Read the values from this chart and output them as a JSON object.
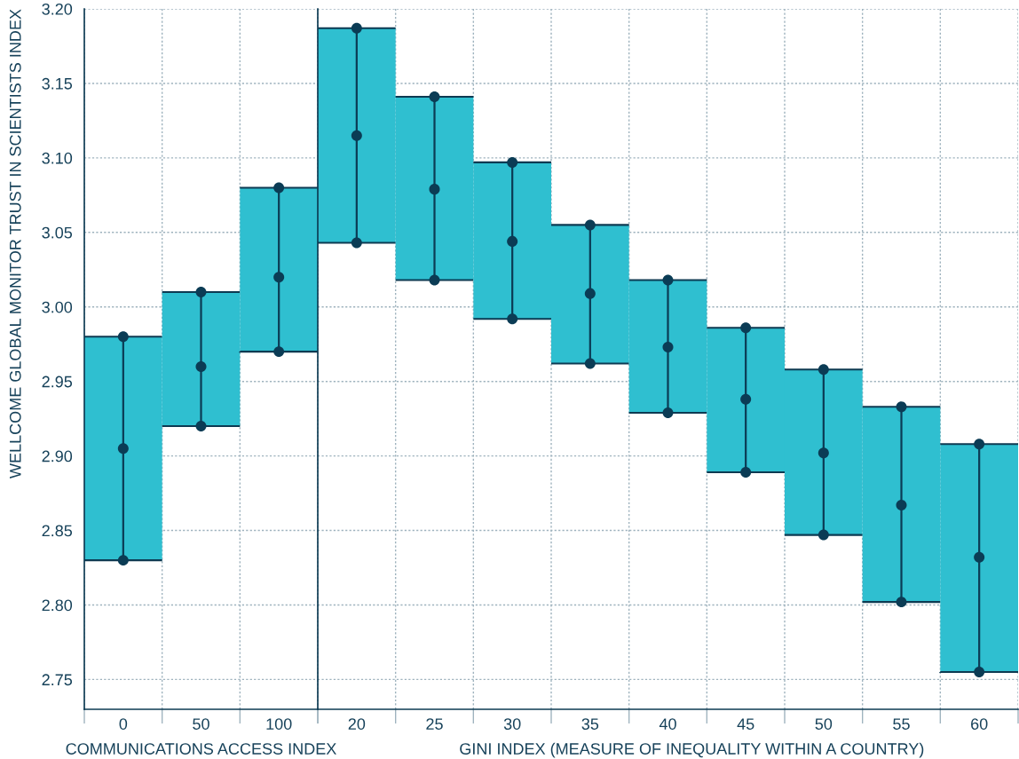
{
  "chart_data": [
    {
      "type": "bar",
      "categories": [
        "0",
        "50",
        "100"
      ],
      "xlabel": "COMMUNICATIONS ACCESS INDEX",
      "ylabel": "WELLCOME GLOBAL MONITOR TRUST IN SCIENTISTS INDEX",
      "ylim": [
        2.73,
        3.2
      ],
      "yticks": [
        2.75,
        {
          "value": 2.8,
          "label": "2.80"
        },
        2.85,
        {
          "value": 2.9,
          "label": "2.90"
        },
        2.95,
        {
          "value": 3.0,
          "label": "3.00"
        },
        3.05,
        {
          "value": 3.1,
          "label": "3.10"
        },
        3.15,
        {
          "value": 3.2,
          "label": "3.20"
        }
      ],
      "grid": true,
      "marker": "circle",
      "series": [
        {
          "color": "#2fbfd0",
          "base": [
            2.83,
            2.92,
            2.97
          ],
          "values": [
            0.15,
            0.09,
            0.11
          ]
        },
        {
          "type": "line",
          "color": "#0b3c55",
          "x": [
            "0",
            "0",
            "0",
            "50",
            "50",
            "50",
            "100",
            "100"
          ],
          "values": [
            2.83,
            2.98,
            null,
            2.92,
            3.01,
            null,
            2.97,
            3.08
          ]
        },
        {
          "type": "scatter",
          "color": "#0b3c55",
          "values": [
            2.905,
            2.96,
            3.02
          ]
        }
      ]
    },
    {
      "type": "bar",
      "categories": [
        "20",
        "25",
        "30",
        "35",
        "40",
        "45",
        "50",
        "55",
        "60"
      ],
      "xlabel": "GINI INDEX (MEASURE OF INEQUALITY WITHIN A COUNTRY)",
      "ylim": [
        2.73,
        3.2
      ],
      "yticks": [
        2.75,
        2.8,
        2.85,
        2.9,
        2.95,
        3.0,
        3.05,
        3.1,
        3.15,
        3.2
      ],
      "grid": true,
      "marker": "circle",
      "tick_labels": "x",
      "series": [
        {
          "color": "#2fbfd0",
          "base": [
            3.043,
            3.018,
            2.992,
            2.962,
            2.929,
            2.889,
            2.847,
            2.802,
            2.755
          ],
          "values": [
            0.144,
            0.123,
            0.105,
            0.093,
            0.089,
            0.097,
            0.111,
            0.131,
            0.153
          ]
        },
        {
          "type": "line",
          "color": "#0b3c55",
          "x": [
            "20",
            "20",
            "20",
            "25",
            "25",
            "25",
            "30",
            "30",
            "30",
            "35",
            "35",
            "35",
            "40",
            "40",
            "40",
            "45",
            "45",
            "45",
            "50",
            "50",
            "50",
            "55",
            "55",
            "55",
            "60",
            "60"
          ],
          "values": [
            3.043,
            3.187,
            null,
            3.018,
            3.141,
            null,
            2.992,
            3.097,
            null,
            2.962,
            3.055,
            null,
            2.929,
            3.018,
            null,
            2.889,
            2.986,
            null,
            2.847,
            2.958,
            null,
            2.802,
            2.933,
            null,
            2.755,
            2.908
          ]
        },
        {
          "type": "scatter",
          "color": "#0b3c55",
          "values": [
            3.115,
            3.079,
            3.044,
            3.009,
            2.973,
            2.938,
            2.902,
            2.867,
            2.832
          ]
        }
      ]
    }
  ]
}
